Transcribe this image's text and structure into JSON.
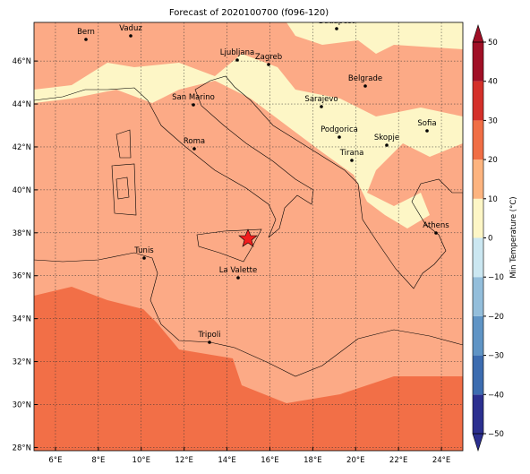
{
  "title": "Forecast of 2020100700 (f096-120)",
  "map": {
    "xlim": [
      5,
      25
    ],
    "ylim": [
      27.85,
      47.8
    ],
    "xticks": [
      {
        "value": 6,
        "label": "6°E"
      },
      {
        "value": 8,
        "label": "8°E"
      },
      {
        "value": 10,
        "label": "10°E"
      },
      {
        "value": 12,
        "label": "12°E"
      },
      {
        "value": 14,
        "label": "14°E"
      },
      {
        "value": 16,
        "label": "16°E"
      },
      {
        "value": 18,
        "label": "18°E"
      },
      {
        "value": 20,
        "label": "20°E"
      },
      {
        "value": 22,
        "label": "22°E"
      },
      {
        "value": 24,
        "label": "24°E"
      }
    ],
    "yticks": [
      {
        "value": 28,
        "label": "28°N"
      },
      {
        "value": 30,
        "label": "30°N"
      },
      {
        "value": 32,
        "label": "32°N"
      },
      {
        "value": 34,
        "label": "34°N"
      },
      {
        "value": 36,
        "label": "36°N"
      },
      {
        "value": 38,
        "label": "38°N"
      },
      {
        "value": 40,
        "label": "40°N"
      },
      {
        "value": 42,
        "label": "42°N"
      },
      {
        "value": 44,
        "label": "44°N"
      },
      {
        "value": 46,
        "label": "46°N"
      }
    ],
    "grid": true,
    "cities": [
      "Bern",
      "Vaduz",
      "Budapest",
      "Ljubljana",
      "Zagreb",
      "Belgrade",
      "San Marino",
      "Sarajevo",
      "Sofia",
      "Podgorica",
      "Skopje",
      "Roma",
      "Tirana",
      "Athens",
      "Tunis",
      "La Valette",
      "Tripoli"
    ]
  },
  "colorbar": {
    "label": "Min Temperature (°C)",
    "range": [
      -50,
      50
    ],
    "ticks": [
      {
        "value": -50,
        "label": "−50"
      },
      {
        "value": -40,
        "label": "−40"
      },
      {
        "value": -30,
        "label": "−30"
      },
      {
        "value": -20,
        "label": "−20"
      },
      {
        "value": -10,
        "label": "−10"
      },
      0,
      10,
      20,
      30,
      40,
      50
    ],
    "colors": [
      "#2b2f8f",
      "#3c6cb0",
      "#5f94c5",
      "#93bedb",
      "#cbe7f1",
      "#fdf6c6",
      "#fdb47f",
      "#f06e45",
      "#d4302a",
      "#a00f26"
    ]
  }
}
